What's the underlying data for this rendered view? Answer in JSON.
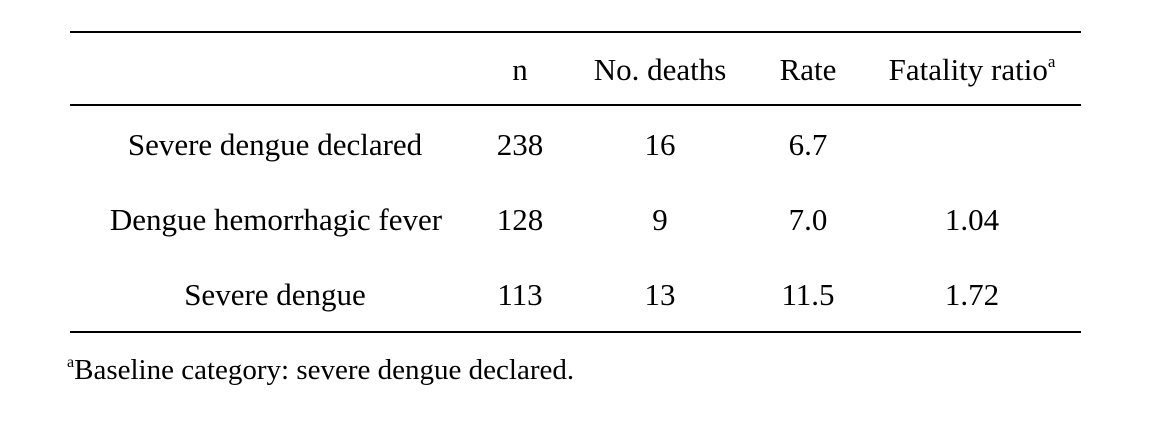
{
  "table": {
    "headers": {
      "label": "",
      "n": "n",
      "deaths": "No. deaths",
      "rate": "Rate",
      "fatality_ratio": "Fatality ratio",
      "fatality_ratio_mark": "a"
    },
    "rows": [
      {
        "label": "Severe dengue declared",
        "n": "238",
        "deaths": "16",
        "rate": "6.7",
        "fatality_ratio": ""
      },
      {
        "label": "Dengue hemorrhagic fever",
        "n": "128",
        "deaths": "9",
        "rate": "7.0",
        "fatality_ratio": "1.04"
      },
      {
        "label": "Severe dengue",
        "n": "113",
        "deaths": "13",
        "rate": "11.5",
        "fatality_ratio": "1.72"
      }
    ]
  },
  "footnote": {
    "mark": "a",
    "text": "Baseline category: severe dengue declared."
  }
}
